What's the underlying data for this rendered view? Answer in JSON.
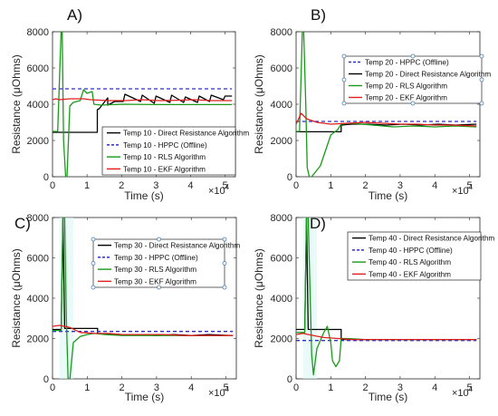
{
  "chart_data": [
    {
      "panel": "A)",
      "type": "line",
      "xlabel": "Time (s)",
      "ylabel": "Resistance (μOhms)",
      "x_multiplier_label": "×10",
      "x_multiplier_exp": "4",
      "xlim": [
        0,
        5.3
      ],
      "ylim": [
        0,
        8000
      ],
      "xticks": [
        0,
        1,
        2,
        3,
        4,
        5
      ],
      "yticks": [
        0,
        2000,
        4000,
        6000,
        8000
      ],
      "legend_position": "lower-right",
      "series": [
        {
          "name": "Temp 10 - Direct Resistance Algorithm",
          "color": "#000000",
          "dash": "solid",
          "x": [
            0,
            1.3,
            1.3,
            1.35,
            1.6,
            1.6,
            1.8,
            2.05,
            2.1,
            2.55,
            2.6,
            2.95,
            3.0,
            3.4,
            3.45,
            3.8,
            3.85,
            4.2,
            4.25,
            4.55,
            4.6,
            4.95,
            5.0,
            5.2
          ],
          "y": [
            2450,
            2450,
            3700,
            3750,
            4350,
            3950,
            4150,
            4150,
            4550,
            4150,
            4500,
            4050,
            4450,
            4100,
            4500,
            4100,
            4400,
            4100,
            4450,
            4150,
            4500,
            4250,
            4450,
            4450
          ]
        },
        {
          "name": "Temp 10 - HPPC (Offline)",
          "color": "#2d2dcf",
          "dash": "dashed",
          "x": [
            0,
            5.2
          ],
          "y": [
            4850,
            4850
          ]
        },
        {
          "name": "Temp 10 - RLS Algorithm",
          "color": "#1a9a1a",
          "dash": "solid",
          "x": [
            0,
            0.15,
            0.25,
            0.28,
            0.32,
            0.38,
            0.42,
            0.5,
            0.6,
            0.8,
            0.9,
            1.0,
            1.15,
            1.2,
            1.4,
            2.0,
            3.0,
            4.0,
            5.2
          ],
          "y": [
            2500,
            2500,
            8000,
            8000,
            2000,
            0,
            0,
            3900,
            4100,
            4200,
            4800,
            4600,
            4700,
            4000,
            3950,
            4000,
            3980,
            3980,
            3980
          ]
        },
        {
          "name": "Temp 10 - EKF Algorithm",
          "color": "#e01e1e",
          "dash": "solid",
          "x": [
            0,
            0.1,
            0.2,
            0.5,
            0.9,
            1.1,
            1.6,
            2.1,
            2.6,
            3.1,
            3.6,
            4.1,
            4.6,
            5.2
          ],
          "y": [
            4250,
            4300,
            4250,
            4300,
            4300,
            4250,
            4200,
            4200,
            4250,
            4200,
            4220,
            4250,
            4200,
            4200
          ]
        }
      ]
    },
    {
      "panel": "B)",
      "type": "line",
      "xlabel": "Time (s)",
      "ylabel": "Resistance (μOhms)",
      "x_multiplier_label": "×10",
      "x_multiplier_exp": "4",
      "xlim": [
        0,
        5.3
      ],
      "ylim": [
        0,
        8000
      ],
      "xticks": [
        0,
        1,
        2,
        3,
        4,
        5
      ],
      "yticks": [
        0,
        2000,
        4000,
        6000,
        8000
      ],
      "legend_position": "upper-right",
      "series": [
        {
          "name": "Temp 20 - HPPC (Offline)",
          "color": "#2d2dcf",
          "dash": "dashed",
          "x": [
            0,
            5.2
          ],
          "y": [
            3050,
            3050
          ]
        },
        {
          "name": "Temp 20 - Direct Resistance Algorithm",
          "color": "#000000",
          "dash": "solid",
          "x": [
            0,
            1.3,
            1.3,
            1.6,
            2.1,
            2.6,
            3.1,
            3.6,
            4.1,
            4.6,
            5.2
          ],
          "y": [
            2480,
            2480,
            2850,
            2900,
            2900,
            2850,
            2900,
            2850,
            2900,
            2850,
            2900
          ]
        },
        {
          "name": "Temp 20 - RLS Algorithm",
          "color": "#1a9a1a",
          "dash": "solid",
          "x": [
            0,
            0.1,
            0.18,
            0.22,
            0.28,
            0.32,
            0.38,
            0.45,
            0.7,
            1.0,
            1.2,
            1.3,
            1.6,
            2.2,
            2.8,
            3.4,
            4.0,
            4.6,
            5.2
          ],
          "y": [
            2500,
            2500,
            8000,
            8000,
            4000,
            500,
            0,
            0,
            600,
            2300,
            2600,
            2900,
            2950,
            2850,
            2750,
            2800,
            2750,
            2800,
            2750
          ]
        },
        {
          "name": "Temp 20 - EKF Algorithm",
          "color": "#e01e1e",
          "dash": "solid",
          "x": [
            0,
            0.15,
            0.3,
            0.6,
            1.0,
            1.5,
            2.0,
            2.5,
            3.0,
            3.5,
            4.0,
            4.5,
            5.2
          ],
          "y": [
            2900,
            3500,
            3200,
            3000,
            2900,
            2950,
            3000,
            2950,
            2900,
            2900,
            2850,
            2850,
            2800
          ]
        }
      ]
    },
    {
      "panel": "C)",
      "type": "line",
      "xlabel": "Time (s)",
      "ylabel": "Resistance (μOhms)",
      "x_multiplier_label": "×10",
      "x_multiplier_exp": "4",
      "xlim": [
        0,
        5.3
      ],
      "ylim": [
        0,
        8000
      ],
      "xticks": [
        0,
        1,
        2,
        3,
        4,
        5
      ],
      "yticks": [
        0,
        2000,
        4000,
        6000,
        8000
      ],
      "legend_position": "upper-right",
      "series": [
        {
          "name": "Temp 30 - Direct Resistance Algorithm",
          "color": "#000000",
          "dash": "solid",
          "x": [
            0,
            0.25,
            0.3,
            0.35,
            1.3,
            1.3,
            2.0,
            2.5,
            3.0,
            3.5,
            4.0,
            4.5,
            5.2
          ],
          "y": [
            2450,
            2450,
            8000,
            2500,
            2500,
            2250,
            2200,
            2200,
            2150,
            2200,
            2150,
            2200,
            2150
          ]
        },
        {
          "name": "Temp 30 - HPPC (Offline)",
          "color": "#2d2dcf",
          "dash": "dashed",
          "x": [
            0,
            5.2
          ],
          "y": [
            2350,
            2350
          ]
        },
        {
          "name": "Temp 30 - RLS Algorithm",
          "color": "#1a9a1a",
          "dash": "solid",
          "x": [
            0,
            0.25,
            0.3,
            0.35,
            0.4,
            0.45,
            0.5,
            0.6,
            0.8,
            1.0,
            1.2,
            1.5,
            2.0,
            3.0,
            4.0,
            5.2
          ],
          "y": [
            2400,
            2400,
            8000,
            8000,
            3000,
            0,
            0,
            1800,
            2100,
            2200,
            2250,
            2200,
            2150,
            2150,
            2150,
            2150
          ]
        },
        {
          "name": "Temp 30 - EKF Algorithm",
          "color": "#e01e1e",
          "dash": "solid",
          "x": [
            0,
            0.2,
            0.5,
            0.8,
            1.2,
            1.6,
            2.0,
            2.6,
            3.2,
            3.8,
            4.4,
            5.2
          ],
          "y": [
            2600,
            2650,
            2550,
            2300,
            2250,
            2250,
            2200,
            2200,
            2200,
            2150,
            2150,
            2150
          ]
        }
      ]
    },
    {
      "panel": "D)",
      "type": "line",
      "xlabel": "Time (s)",
      "ylabel": "Resistance (μOhms)",
      "x_multiplier_label": "×10",
      "x_multiplier_exp": "4",
      "xlim": [
        0,
        5.3
      ],
      "ylim": [
        0,
        8000
      ],
      "xticks": [
        0,
        1,
        2,
        3,
        4,
        5
      ],
      "yticks": [
        0,
        2000,
        4000,
        6000,
        8000
      ],
      "legend_position": "upper-right",
      "series": [
        {
          "name": "Temp 40 - Direct Resistance Algorithm",
          "color": "#000000",
          "dash": "solid",
          "x": [
            0,
            0.25,
            0.3,
            0.35,
            1.3,
            1.3,
            2.0,
            3.0,
            4.0,
            5.2
          ],
          "y": [
            2450,
            2450,
            8000,
            2450,
            2450,
            1950,
            1950,
            1950,
            1950,
            1950
          ]
        },
        {
          "name": "Temp 40 - HPPC (Offline)",
          "color": "#2d2dcf",
          "dash": "dashed",
          "x": [
            0,
            5.2
          ],
          "y": [
            1900,
            1900
          ]
        },
        {
          "name": "Temp 40 - RLS Algorithm",
          "color": "#1a9a1a",
          "dash": "solid",
          "x": [
            0,
            0.25,
            0.3,
            0.35,
            0.45,
            0.5,
            0.6,
            0.8,
            0.9,
            1.0,
            1.05,
            1.15,
            1.25,
            1.3,
            1.5,
            2.0,
            3.0,
            4.0,
            5.2
          ],
          "y": [
            2300,
            2300,
            8000,
            8000,
            1200,
            200,
            1500,
            2300,
            2600,
            1800,
            900,
            600,
            900,
            2000,
            2000,
            1950,
            1950,
            1950,
            1950
          ]
        },
        {
          "name": "Temp 40 - EKF Algorithm",
          "color": "#e01e1e",
          "dash": "solid",
          "x": [
            0,
            0.2,
            0.5,
            0.8,
            1.2,
            1.6,
            2.2,
            3.0,
            4.0,
            5.2
          ],
          "y": [
            2200,
            2250,
            2150,
            2050,
            2000,
            1950,
            1950,
            1950,
            1950,
            1950
          ]
        }
      ]
    }
  ]
}
